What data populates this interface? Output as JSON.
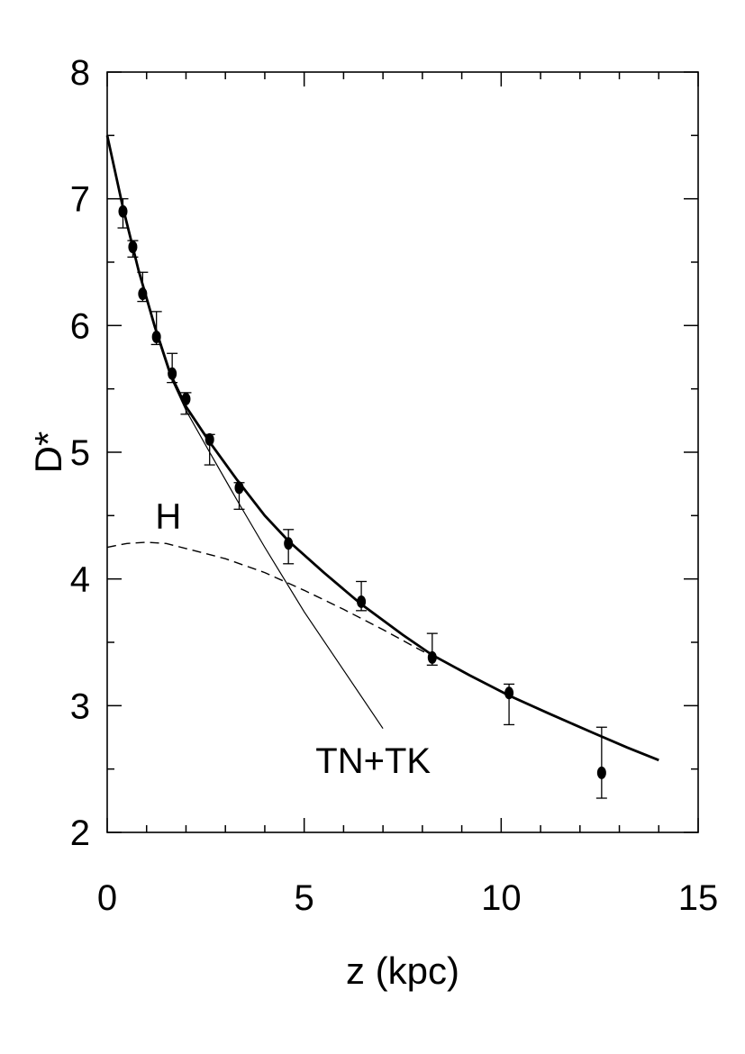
{
  "chart_data": {
    "type": "scatter",
    "title": "",
    "xlabel": "z (kpc)",
    "ylabel": "D*",
    "xlim": [
      0,
      15
    ],
    "ylim": [
      2,
      8
    ],
    "xticks": [
      0,
      5,
      10,
      15
    ],
    "yticks": [
      2,
      3,
      4,
      5,
      6,
      7,
      8
    ],
    "x_minor_step": 1,
    "y_minor_step": 0.5,
    "grid": false,
    "legend": "none",
    "series": [
      {
        "kind": "points-with-error-bars",
        "x": [
          0.4,
          0.65,
          0.9,
          1.25,
          1.65,
          2.0,
          2.6,
          3.35,
          4.6,
          6.45,
          8.25,
          10.2,
          12.55
        ],
        "y": [
          6.9,
          6.62,
          6.25,
          5.91,
          5.62,
          5.42,
          5.1,
          4.72,
          4.28,
          3.82,
          3.38,
          3.1,
          2.47
        ],
        "err_low": [
          0.13,
          0.08,
          0.06,
          0.06,
          0.07,
          0.12,
          0.2,
          0.17,
          0.16,
          0.07,
          0.06,
          0.25,
          0.2
        ],
        "err_high": [
          0.1,
          0.05,
          0.17,
          0.2,
          0.16,
          0.05,
          0.04,
          0.04,
          0.11,
          0.16,
          0.19,
          0.07,
          0.36
        ]
      },
      {
        "kind": "thick-solid-line",
        "x": [
          0,
          0.4,
          0.8,
          1.2,
          1.6,
          2.0,
          2.6,
          3.3,
          4.0,
          4.6,
          5.5,
          6.45,
          7.5,
          8.25,
          9.2,
          10.2,
          11.2,
          12.3,
          13.2,
          14.0
        ],
        "y": [
          7.5,
          6.93,
          6.43,
          6.0,
          5.62,
          5.36,
          5.08,
          4.78,
          4.5,
          4.3,
          4.05,
          3.8,
          3.56,
          3.4,
          3.24,
          3.08,
          2.94,
          2.79,
          2.67,
          2.57
        ]
      },
      {
        "kind": "thin-solid-line",
        "x": [
          0,
          0.4,
          0.8,
          1.2,
          1.6,
          2.0,
          2.6,
          3.3,
          4.0,
          5.0,
          6.0,
          7.0
        ],
        "y": [
          7.5,
          6.92,
          6.42,
          5.98,
          5.6,
          5.33,
          5.0,
          4.62,
          4.25,
          3.74,
          3.28,
          2.82
        ]
      },
      {
        "kind": "dashed-line",
        "x": [
          0,
          0.5,
          1.0,
          1.5,
          2.0,
          3.0,
          4.0,
          5.0,
          6.0,
          7.0,
          8.0,
          8.5
        ],
        "y": [
          4.25,
          4.28,
          4.29,
          4.28,
          4.24,
          4.16,
          4.05,
          3.91,
          3.76,
          3.6,
          3.43,
          3.36
        ]
      }
    ],
    "annotations": [
      {
        "text": "H",
        "x": 1.55,
        "y": 4.4
      },
      {
        "text": "TN+TK",
        "x": 6.75,
        "y": 2.47
      }
    ]
  }
}
